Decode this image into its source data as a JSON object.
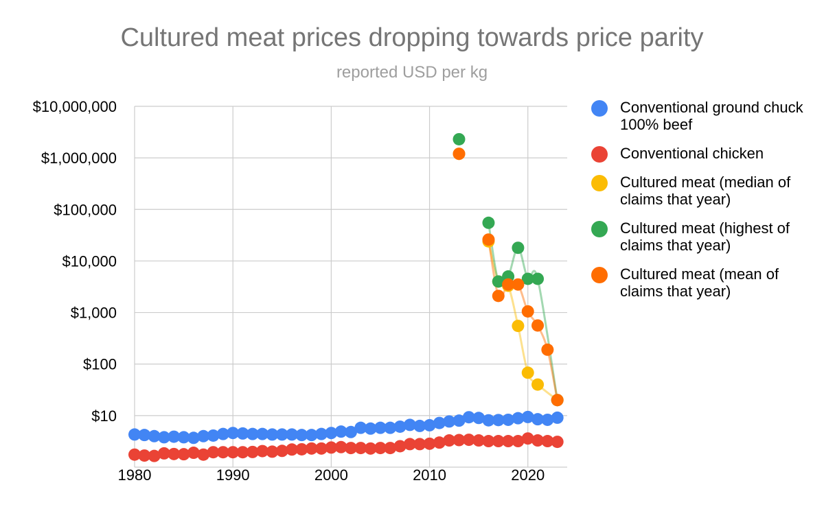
{
  "title": "Cultured meat prices dropping towards price parity",
  "subtitle": "reported USD per kg",
  "chart_data": {
    "type": "scatter",
    "y_scale": "log",
    "ylim": [
      1,
      10000000
    ],
    "xlim": [
      1980,
      2024
    ],
    "grid": true,
    "legend_position": "right",
    "x_ticks": [
      1980,
      1990,
      2000,
      2010,
      2020
    ],
    "y_ticks": [
      10,
      100,
      1000,
      10000,
      100000,
      1000000,
      10000000
    ],
    "y_tick_labels": [
      "$10",
      "$100",
      "$1,000",
      "$10,000",
      "$100,000",
      "$1,000,000",
      "$10,000,000"
    ],
    "series": [
      {
        "name": "Conventional ground chuck 100% beef",
        "color": "#4285f4",
        "trendline": false,
        "points": [
          [
            1980,
            4.3
          ],
          [
            1981,
            4.2
          ],
          [
            1982,
            4.0
          ],
          [
            1983,
            3.8
          ],
          [
            1984,
            3.9
          ],
          [
            1985,
            3.8
          ],
          [
            1986,
            3.7
          ],
          [
            1987,
            4.0
          ],
          [
            1988,
            4.1
          ],
          [
            1989,
            4.4
          ],
          [
            1990,
            4.6
          ],
          [
            1991,
            4.5
          ],
          [
            1992,
            4.4
          ],
          [
            1993,
            4.4
          ],
          [
            1994,
            4.3
          ],
          [
            1995,
            4.3
          ],
          [
            1996,
            4.3
          ],
          [
            1997,
            4.2
          ],
          [
            1998,
            4.2
          ],
          [
            1999,
            4.4
          ],
          [
            2000,
            4.6
          ],
          [
            2001,
            4.9
          ],
          [
            2002,
            4.8
          ],
          [
            2003,
            5.8
          ],
          [
            2004,
            5.6
          ],
          [
            2005,
            5.8
          ],
          [
            2006,
            5.8
          ],
          [
            2007,
            6.1
          ],
          [
            2008,
            6.6
          ],
          [
            2009,
            6.3
          ],
          [
            2010,
            6.5
          ],
          [
            2011,
            7.2
          ],
          [
            2012,
            7.7
          ],
          [
            2013,
            8.0
          ],
          [
            2014,
            9.3
          ],
          [
            2015,
            9.0
          ],
          [
            2016,
            8.1
          ],
          [
            2017,
            8.2
          ],
          [
            2018,
            8.3
          ],
          [
            2019,
            8.9
          ],
          [
            2020,
            9.4
          ],
          [
            2021,
            8.5
          ],
          [
            2022,
            8.3
          ],
          [
            2023,
            9.1
          ]
        ]
      },
      {
        "name": "Conventional chicken",
        "color": "#ea4335",
        "trendline": false,
        "points": [
          [
            1980,
            1.75
          ],
          [
            1981,
            1.68
          ],
          [
            1982,
            1.65
          ],
          [
            1983,
            1.85
          ],
          [
            1984,
            1.8
          ],
          [
            1985,
            1.78
          ],
          [
            1986,
            1.9
          ],
          [
            1987,
            1.75
          ],
          [
            1988,
            1.95
          ],
          [
            1989,
            1.95
          ],
          [
            1990,
            1.95
          ],
          [
            1991,
            1.95
          ],
          [
            1992,
            1.97
          ],
          [
            1993,
            2.05
          ],
          [
            1994,
            2.0
          ],
          [
            1995,
            2.07
          ],
          [
            1996,
            2.2
          ],
          [
            1997,
            2.22
          ],
          [
            1998,
            2.3
          ],
          [
            1999,
            2.3
          ],
          [
            2000,
            2.4
          ],
          [
            2001,
            2.45
          ],
          [
            2002,
            2.35
          ],
          [
            2003,
            2.35
          ],
          [
            2004,
            2.3
          ],
          [
            2005,
            2.35
          ],
          [
            2006,
            2.35
          ],
          [
            2007,
            2.55
          ],
          [
            2008,
            2.8
          ],
          [
            2009,
            2.8
          ],
          [
            2010,
            2.85
          ],
          [
            2011,
            3.0
          ],
          [
            2012,
            3.3
          ],
          [
            2013,
            3.35
          ],
          [
            2014,
            3.4
          ],
          [
            2015,
            3.3
          ],
          [
            2016,
            3.2
          ],
          [
            2017,
            3.2
          ],
          [
            2018,
            3.2
          ],
          [
            2019,
            3.2
          ],
          [
            2020,
            3.6
          ],
          [
            2021,
            3.3
          ],
          [
            2022,
            3.2
          ],
          [
            2023,
            3.1
          ]
        ]
      },
      {
        "name": "Cultured meat (median of claims that year)",
        "color": "#fbbc04",
        "trendline": true,
        "points": [
          [
            2013,
            1200000
          ],
          [
            2016,
            24000
          ],
          [
            2017,
            4000
          ],
          [
            2018,
            3300
          ],
          [
            2019,
            550
          ],
          [
            2020,
            68
          ],
          [
            2021,
            40
          ],
          [
            2023,
            20
          ]
        ]
      },
      {
        "name": "Cultured meat (highest of claims that year)",
        "color": "#34a853",
        "trendline": true,
        "points": [
          [
            2013,
            2300000
          ],
          [
            2016,
            55000
          ],
          [
            2017,
            4000
          ],
          [
            2018,
            5000
          ],
          [
            2019,
            18000
          ],
          [
            2020,
            4500
          ],
          [
            2021,
            4500
          ],
          [
            2023,
            20
          ]
        ]
      },
      {
        "name": "Cultured meat (mean of claims that year)",
        "color": "#ff6d01",
        "trendline": true,
        "points": [
          [
            2013,
            1200000
          ],
          [
            2016,
            26000
          ],
          [
            2017,
            2100
          ],
          [
            2018,
            3500
          ],
          [
            2019,
            3500
          ],
          [
            2020,
            1050
          ],
          [
            2021,
            560
          ],
          [
            2022,
            190
          ],
          [
            2023,
            20
          ]
        ]
      }
    ]
  }
}
